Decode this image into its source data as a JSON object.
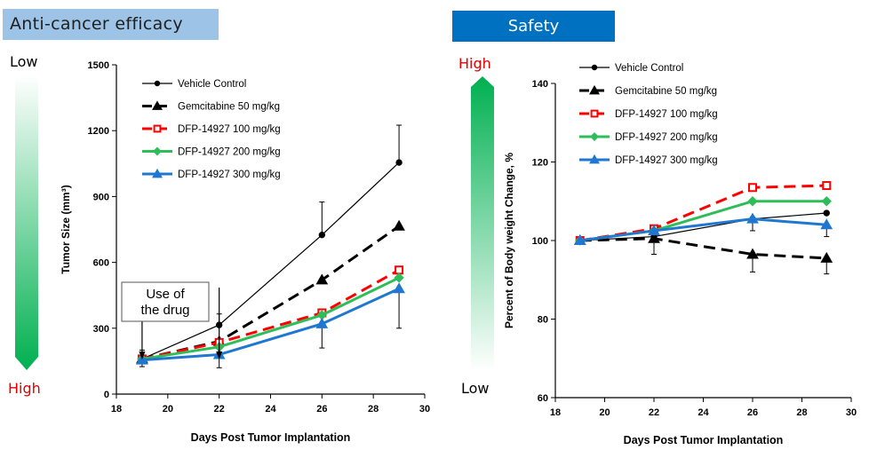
{
  "headers": {
    "left": "Anti-cancer efficacy",
    "right": "Safety"
  },
  "gradient_left": {
    "top_label": "Low",
    "bottom_label": "High",
    "top_color": "#ffffff",
    "bottom_color": "#00b050"
  },
  "gradient_right": {
    "top_label": "High",
    "bottom_label": "Low",
    "top_color": "#00b050",
    "bottom_color": "#ffffff"
  },
  "colors": {
    "high_label": "#e00000",
    "vehicle": "#000000",
    "gem": "#000000",
    "dfp100": "#ff0000",
    "dfp200": "#2ebd59",
    "dfp300": "#1f77d0"
  },
  "chart_data": [
    {
      "type": "line",
      "xlabel": "Days Post Tumor Implantation",
      "ylabel": "Tumor Size (mm³)",
      "xlim": [
        18,
        30
      ],
      "ylim": [
        0,
        1500
      ],
      "xticks": [
        18,
        20,
        22,
        24,
        26,
        28,
        30
      ],
      "yticks": [
        0,
        300,
        600,
        900,
        1200,
        1500
      ],
      "annotation": "Use of the drug",
      "annotation_lines": [
        "Use of",
        "the drug"
      ],
      "arrows_at_x": [
        19,
        22
      ],
      "legend_position": "top-left",
      "series": [
        {
          "name": "Vehicle Control",
          "x": [
            19,
            22,
            26,
            29
          ],
          "values": [
            160,
            315,
            725,
            1055
          ],
          "error": [
            40,
            50,
            150,
            170
          ]
        },
        {
          "name": "Gemcitabine 50 mg/kg",
          "x": [
            19,
            22,
            26,
            29
          ],
          "values": [
            160,
            240,
            520,
            765
          ],
          "error": [
            0,
            0,
            0,
            0
          ]
        },
        {
          "name": "DFP-14927 100 mg/kg",
          "x": [
            19,
            22,
            26,
            29
          ],
          "values": [
            160,
            235,
            370,
            565
          ],
          "error": [
            0,
            0,
            0,
            0
          ]
        },
        {
          "name": "DFP-14927 200 mg/kg",
          "x": [
            19,
            22,
            26,
            29
          ],
          "values": [
            160,
            215,
            360,
            530
          ],
          "error": [
            0,
            0,
            0,
            0
          ]
        },
        {
          "name": "DFP-14927 300 mg/kg",
          "x": [
            19,
            22,
            26,
            29
          ],
          "values": [
            155,
            180,
            320,
            480
          ],
          "error": [
            30,
            60,
            110,
            180
          ]
        }
      ]
    },
    {
      "type": "line",
      "xlabel": "Days Post Tumor Implantation",
      "ylabel": "Percent of  Body weight Change, %",
      "xlim": [
        18,
        30
      ],
      "ylim": [
        60,
        140
      ],
      "xticks": [
        18,
        20,
        22,
        24,
        26,
        28,
        30
      ],
      "yticks": [
        60,
        80,
        100,
        120,
        140
      ],
      "legend_position": "top-left",
      "series": [
        {
          "name": "Vehicle Control",
          "x": [
            19,
            22,
            26,
            29
          ],
          "values": [
            100,
            101,
            105.5,
            107
          ],
          "error": [
            0,
            0,
            0,
            0
          ]
        },
        {
          "name": "Gemcitabine 50 mg/kg",
          "x": [
            19,
            22,
            26,
            29
          ],
          "values": [
            100,
            100.5,
            96.5,
            95.5
          ],
          "error": [
            0,
            4,
            4.5,
            4
          ]
        },
        {
          "name": "DFP-14927 100 mg/kg",
          "x": [
            19,
            22,
            26,
            29
          ],
          "values": [
            100,
            103,
            113.5,
            114
          ],
          "error": [
            0,
            0,
            0,
            0
          ]
        },
        {
          "name": "DFP-14927 200 mg/kg",
          "x": [
            19,
            22,
            26,
            29
          ],
          "values": [
            100,
            102.5,
            110,
            110
          ],
          "error": [
            0,
            0,
            0,
            0
          ]
        },
        {
          "name": "DFP-14927 300 mg/kg",
          "x": [
            19,
            22,
            26,
            29
          ],
          "values": [
            100,
            102.5,
            105.5,
            104
          ],
          "error": [
            0,
            0,
            3,
            3
          ]
        }
      ]
    }
  ]
}
